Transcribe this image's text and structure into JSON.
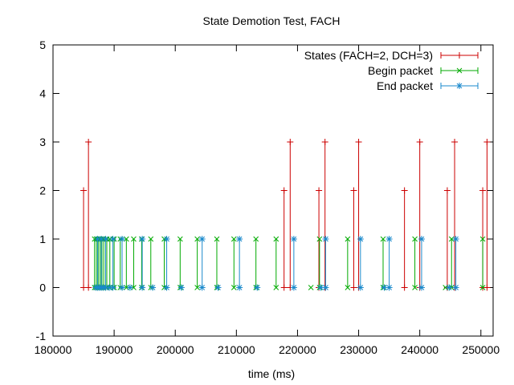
{
  "chart_data": {
    "type": "line",
    "title": "State Demotion Test, FACH",
    "xlabel": "time (ms)",
    "ylabel": "",
    "xlim": [
      180000,
      252000
    ],
    "ylim": [
      -1,
      5
    ],
    "x_ticks": [
      180000,
      190000,
      200000,
      210000,
      220000,
      230000,
      240000,
      250000
    ],
    "x_tick_labels": [
      "180000",
      "190000",
      "200000",
      "210000",
      "220000",
      "230000",
      "240000",
      "250000"
    ],
    "y_ticks": [
      -1,
      0,
      1,
      2,
      3,
      4,
      5
    ],
    "y_tick_labels": [
      "-1",
      "0",
      "1",
      "2",
      "3",
      "4",
      "5"
    ],
    "grid": false,
    "legend_position": "top-right",
    "series": [
      {
        "name": "States (FACH=2, DCH=3)",
        "color": "#cc0000",
        "marker": "plus",
        "impulses": [
          {
            "x": 185000,
            "y": 2
          },
          {
            "x": 185800,
            "y": 3
          },
          {
            "x": 217800,
            "y": 2
          },
          {
            "x": 218800,
            "y": 3
          },
          {
            "x": 223500,
            "y": 2
          },
          {
            "x": 224500,
            "y": 3
          },
          {
            "x": 229200,
            "y": 2
          },
          {
            "x": 230000,
            "y": 3
          },
          {
            "x": 237500,
            "y": 2
          },
          {
            "x": 240000,
            "y": 3
          },
          {
            "x": 244500,
            "y": 2
          },
          {
            "x": 245700,
            "y": 3
          },
          {
            "x": 250300,
            "y": 2
          },
          {
            "x": 251000,
            "y": 3
          }
        ]
      },
      {
        "name": "Begin packet",
        "color": "#00aa00",
        "marker": "cross",
        "impulses": [
          {
            "x": 186800,
            "y": 1
          },
          {
            "x": 187100,
            "y": 1
          },
          {
            "x": 187400,
            "y": 1
          },
          {
            "x": 187700,
            "y": 1
          },
          {
            "x": 188000,
            "y": 1
          },
          {
            "x": 188300,
            "y": 1
          },
          {
            "x": 188800,
            "y": 1
          },
          {
            "x": 189300,
            "y": 1
          },
          {
            "x": 190000,
            "y": 1
          },
          {
            "x": 191000,
            "y": 1
          },
          {
            "x": 192000,
            "y": 1
          },
          {
            "x": 193200,
            "y": 1
          },
          {
            "x": 194500,
            "y": 1
          },
          {
            "x": 196000,
            "y": 1
          },
          {
            "x": 198200,
            "y": 1
          },
          {
            "x": 200800,
            "y": 1
          },
          {
            "x": 203600,
            "y": 1
          },
          {
            "x": 206800,
            "y": 1
          },
          {
            "x": 209600,
            "y": 1
          },
          {
            "x": 213200,
            "y": 1
          },
          {
            "x": 216500,
            "y": 1
          },
          {
            "x": 222200,
            "y": 0
          },
          {
            "x": 223600,
            "y": 1
          },
          {
            "x": 228200,
            "y": 1
          },
          {
            "x": 234000,
            "y": 1
          },
          {
            "x": 239200,
            "y": 1
          },
          {
            "x": 244200,
            "y": 0
          },
          {
            "x": 245200,
            "y": 1
          },
          {
            "x": 250300,
            "y": 1
          }
        ]
      },
      {
        "name": "End packet",
        "color": "#1a8acc",
        "marker": "star",
        "impulses": [
          {
            "x": 187000,
            "y": 0
          },
          {
            "x": 187300,
            "y": 1
          },
          {
            "x": 187600,
            "y": 0
          },
          {
            "x": 187900,
            "y": 1
          },
          {
            "x": 188200,
            "y": 0
          },
          {
            "x": 188600,
            "y": 1
          },
          {
            "x": 189200,
            "y": 0
          },
          {
            "x": 189800,
            "y": 1
          },
          {
            "x": 191300,
            "y": 1
          },
          {
            "x": 192600,
            "y": 0
          },
          {
            "x": 194600,
            "y": 1
          },
          {
            "x": 196300,
            "y": 0
          },
          {
            "x": 198600,
            "y": 1
          },
          {
            "x": 201000,
            "y": 0
          },
          {
            "x": 204400,
            "y": 1
          },
          {
            "x": 207000,
            "y": 0
          },
          {
            "x": 210500,
            "y": 1
          },
          {
            "x": 213400,
            "y": 0
          },
          {
            "x": 219400,
            "y": 1
          },
          {
            "x": 223800,
            "y": 0
          },
          {
            "x": 224600,
            "y": 1
          },
          {
            "x": 230300,
            "y": 1
          },
          {
            "x": 234200,
            "y": 0
          },
          {
            "x": 235000,
            "y": 1
          },
          {
            "x": 240300,
            "y": 1
          },
          {
            "x": 244800,
            "y": 0
          },
          {
            "x": 245900,
            "y": 1
          }
        ]
      }
    ]
  }
}
